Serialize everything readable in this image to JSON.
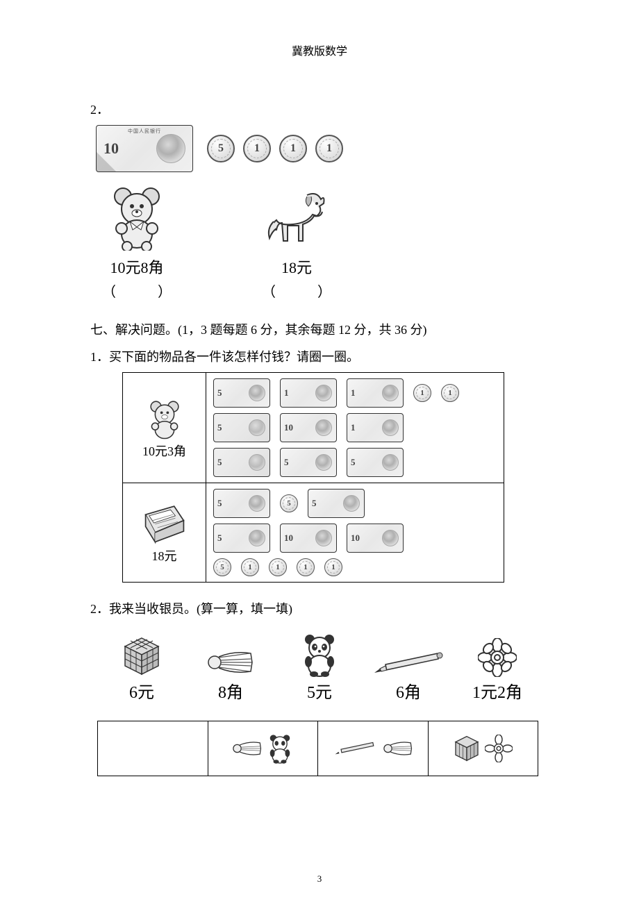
{
  "header": {
    "title": "冀教版数学"
  },
  "q2": {
    "number": "2．",
    "banknote": {
      "value": "10",
      "top": "中国人民银行"
    },
    "coins": [
      "5",
      "1",
      "1",
      "1"
    ],
    "bear": {
      "price": "10元8角",
      "blank": "（　　　）"
    },
    "horse": {
      "price": "18元",
      "blank": "（　　　）"
    }
  },
  "section7": {
    "heading": "七、解决问题。(1，3 题每题 6 分，其余每题 12 分，共 36 分)",
    "q1": {
      "text": "1．买下面的物品各一件该怎样付钱？请圈一圈。",
      "bear_price": "10元3角",
      "calc_price": "18元",
      "row1_line1": [
        {
          "type": "note",
          "val": "5"
        },
        {
          "type": "note",
          "val": "1"
        },
        {
          "type": "note",
          "val": "1"
        },
        {
          "type": "coin",
          "val": "1"
        },
        {
          "type": "coin",
          "val": "1"
        }
      ],
      "row1_line2": [
        {
          "type": "jiao",
          "val": "5"
        },
        {
          "type": "note",
          "val": "10"
        },
        {
          "type": "note",
          "val": "1"
        }
      ],
      "row1_line3": [
        {
          "type": "jiao",
          "val": "5"
        },
        {
          "type": "note",
          "val": "5"
        },
        {
          "type": "note",
          "val": "5"
        }
      ],
      "row2_line1": [
        {
          "type": "note",
          "val": "5"
        },
        {
          "type": "coin",
          "val": "5"
        },
        {
          "type": "note",
          "val": "5"
        }
      ],
      "row2_line2": [
        {
          "type": "note",
          "val": "5"
        },
        {
          "type": "note",
          "val": "10"
        },
        {
          "type": "note",
          "val": "10"
        }
      ],
      "row2_line3": [
        {
          "type": "coin",
          "val": "5"
        },
        {
          "type": "coin",
          "val": "1"
        },
        {
          "type": "coin",
          "val": "1"
        },
        {
          "type": "coin",
          "val": "1"
        },
        {
          "type": "coin",
          "val": "1"
        }
      ]
    },
    "q2": {
      "text": "2．我来当收银员。(算一算，填一填)",
      "items": [
        {
          "name": "cube",
          "price": "6元"
        },
        {
          "name": "shuttlecock",
          "price": "8角"
        },
        {
          "name": "panda",
          "price": "5元"
        },
        {
          "name": "pencil",
          "price": "6角"
        },
        {
          "name": "flower",
          "price": "1元2角"
        }
      ],
      "cells": [
        [],
        [
          "shuttlecock",
          "panda"
        ],
        [
          "pencil",
          "shuttlecock"
        ],
        [
          "cube",
          "flower"
        ]
      ]
    }
  },
  "pageNumber": "3"
}
